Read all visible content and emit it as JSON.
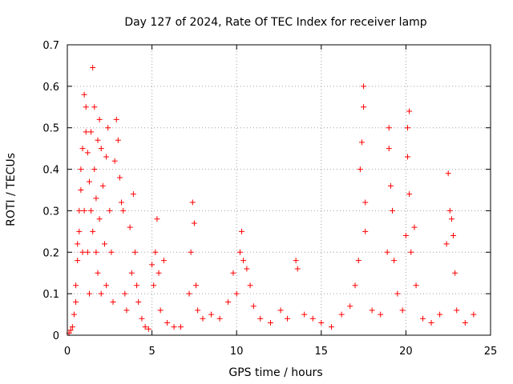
{
  "chart_data": {
    "type": "scatter",
    "title": "Day 127 of 2024, Rate Of TEC Index for receiver lamp",
    "xlabel": "GPS time / hours",
    "ylabel": "ROTI / TECUs",
    "xlim": [
      0,
      25
    ],
    "ylim": [
      0,
      0.7
    ],
    "xticks": [
      "0",
      "5",
      "10",
      "15",
      "20",
      "25"
    ],
    "yticks": [
      "0",
      "0.1",
      "0.2",
      "0.3",
      "0.4",
      "0.5",
      "0.6",
      "0.7"
    ],
    "grid": true,
    "marker": "+",
    "marker_color": "#ff0000",
    "series": [
      {
        "points": [
          [
            0.1,
            0.005
          ],
          [
            0.2,
            0.012
          ],
          [
            0.3,
            0.02
          ],
          [
            0.4,
            0.05
          ],
          [
            0.5,
            0.08
          ],
          [
            0.5,
            0.12
          ],
          [
            0.6,
            0.18
          ],
          [
            0.6,
            0.22
          ],
          [
            0.7,
            0.25
          ],
          [
            0.7,
            0.3
          ],
          [
            0.8,
            0.35
          ],
          [
            0.8,
            0.4
          ],
          [
            0.9,
            0.2
          ],
          [
            0.9,
            0.45
          ],
          [
            1.0,
            0.58
          ],
          [
            1.0,
            0.3
          ],
          [
            1.1,
            0.49
          ],
          [
            1.1,
            0.55
          ],
          [
            1.2,
            0.44
          ],
          [
            1.2,
            0.2
          ],
          [
            1.3,
            0.37
          ],
          [
            1.3,
            0.1
          ],
          [
            1.4,
            0.49
          ],
          [
            1.4,
            0.3
          ],
          [
            1.5,
            0.645
          ],
          [
            1.5,
            0.25
          ],
          [
            1.6,
            0.55
          ],
          [
            1.6,
            0.4
          ],
          [
            1.7,
            0.2
          ],
          [
            1.7,
            0.33
          ],
          [
            1.8,
            0.47
          ],
          [
            1.8,
            0.15
          ],
          [
            1.9,
            0.52
          ],
          [
            1.9,
            0.28
          ],
          [
            2.0,
            0.45
          ],
          [
            2.0,
            0.1
          ],
          [
            2.1,
            0.36
          ],
          [
            2.2,
            0.22
          ],
          [
            2.3,
            0.43
          ],
          [
            2.3,
            0.12
          ],
          [
            2.4,
            0.5
          ],
          [
            2.5,
            0.3
          ],
          [
            2.6,
            0.2
          ],
          [
            2.7,
            0.08
          ],
          [
            2.8,
            0.42
          ],
          [
            2.9,
            0.52
          ],
          [
            3.0,
            0.47
          ],
          [
            3.1,
            0.38
          ],
          [
            3.2,
            0.32
          ],
          [
            3.3,
            0.3
          ],
          [
            3.4,
            0.1
          ],
          [
            3.5,
            0.06
          ],
          [
            3.7,
            0.26
          ],
          [
            3.8,
            0.15
          ],
          [
            3.9,
            0.34
          ],
          [
            4.0,
            0.2
          ],
          [
            4.1,
            0.12
          ],
          [
            4.2,
            0.08
          ],
          [
            4.4,
            0.04
          ],
          [
            4.6,
            0.02
          ],
          [
            4.8,
            0.015
          ],
          [
            5.0,
            0.17
          ],
          [
            5.1,
            0.12
          ],
          [
            5.2,
            0.2
          ],
          [
            5.3,
            0.28
          ],
          [
            5.4,
            0.15
          ],
          [
            5.5,
            0.06
          ],
          [
            5.7,
            0.18
          ],
          [
            5.9,
            0.03
          ],
          [
            6.3,
            0.02
          ],
          [
            6.7,
            0.02
          ],
          [
            7.2,
            0.1
          ],
          [
            7.3,
            0.2
          ],
          [
            7.4,
            0.32
          ],
          [
            7.5,
            0.27
          ],
          [
            7.6,
            0.12
          ],
          [
            7.7,
            0.06
          ],
          [
            8.0,
            0.04
          ],
          [
            8.5,
            0.05
          ],
          [
            9.0,
            0.04
          ],
          [
            9.5,
            0.08
          ],
          [
            9.8,
            0.15
          ],
          [
            10.0,
            0.1
          ],
          [
            10.2,
            0.2
          ],
          [
            10.3,
            0.25
          ],
          [
            10.4,
            0.18
          ],
          [
            10.6,
            0.16
          ],
          [
            10.8,
            0.12
          ],
          [
            11.0,
            0.07
          ],
          [
            11.4,
            0.04
          ],
          [
            12.0,
            0.03
          ],
          [
            12.6,
            0.06
          ],
          [
            13.0,
            0.04
          ],
          [
            13.5,
            0.18
          ],
          [
            13.6,
            0.16
          ],
          [
            14.0,
            0.05
          ],
          [
            14.5,
            0.04
          ],
          [
            15.0,
            0.03
          ],
          [
            15.6,
            0.02
          ],
          [
            16.2,
            0.05
          ],
          [
            16.7,
            0.07
          ],
          [
            17.0,
            0.12
          ],
          [
            17.2,
            0.18
          ],
          [
            17.3,
            0.4
          ],
          [
            17.4,
            0.465
          ],
          [
            17.5,
            0.6
          ],
          [
            17.5,
            0.55
          ],
          [
            17.6,
            0.32
          ],
          [
            17.6,
            0.25
          ],
          [
            18.0,
            0.06
          ],
          [
            18.5,
            0.05
          ],
          [
            18.9,
            0.2
          ],
          [
            19.0,
            0.5
          ],
          [
            19.0,
            0.45
          ],
          [
            19.1,
            0.36
          ],
          [
            19.2,
            0.3
          ],
          [
            19.3,
            0.18
          ],
          [
            19.5,
            0.1
          ],
          [
            19.8,
            0.06
          ],
          [
            20.0,
            0.24
          ],
          [
            20.1,
            0.5
          ],
          [
            20.1,
            0.43
          ],
          [
            20.2,
            0.54
          ],
          [
            20.2,
            0.34
          ],
          [
            20.3,
            0.2
          ],
          [
            20.5,
            0.26
          ],
          [
            20.6,
            0.12
          ],
          [
            21.0,
            0.04
          ],
          [
            21.5,
            0.03
          ],
          [
            22.0,
            0.05
          ],
          [
            22.4,
            0.22
          ],
          [
            22.5,
            0.39
          ],
          [
            22.6,
            0.3
          ],
          [
            22.7,
            0.28
          ],
          [
            22.8,
            0.24
          ],
          [
            22.9,
            0.15
          ],
          [
            23.0,
            0.06
          ],
          [
            23.5,
            0.03
          ],
          [
            24.0,
            0.05
          ]
        ]
      }
    ]
  }
}
